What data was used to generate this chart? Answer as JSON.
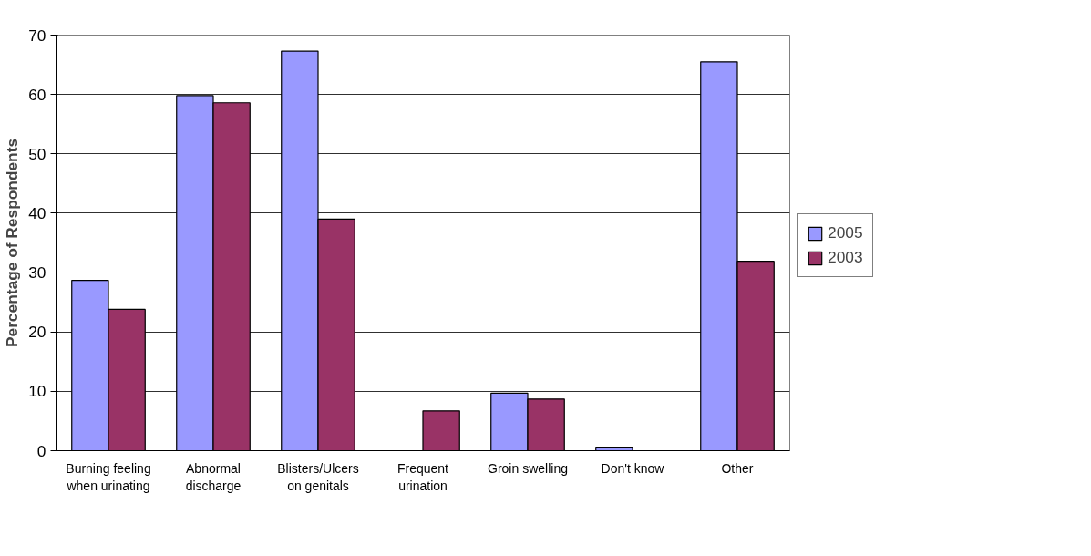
{
  "chart_data": {
    "type": "bar",
    "ylabel": "Percentage of Respondents",
    "categories": [
      "Burning feeling when urinating",
      "Abnormal discharge",
      "Blisters/Ulcers on genitals",
      "Frequent urination",
      "Groin swelling",
      "Don't know",
      "Other"
    ],
    "series": [
      {
        "name": "2005",
        "color": "#9999ff",
        "values": [
          28.7,
          59.8,
          67.3,
          null,
          9.7,
          0.6,
          65.5
        ]
      },
      {
        "name": "2003",
        "color": "#993366",
        "values": [
          23.8,
          58.6,
          39.0,
          6.7,
          8.7,
          null,
          31.9
        ]
      }
    ],
    "ylim": [
      0,
      70
    ],
    "yticks": [
      0,
      10,
      20,
      30,
      40,
      50,
      60,
      70
    ],
    "grid": "y",
    "legend": "right"
  }
}
